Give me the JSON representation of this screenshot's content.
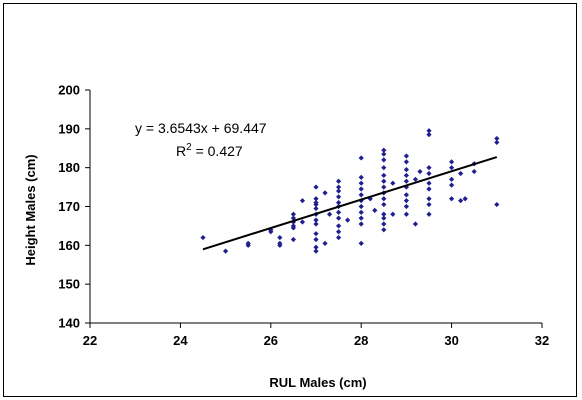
{
  "chart_data": {
    "type": "scatter",
    "title": "",
    "xlabel": "RUL Males (cm)",
    "ylabel": "Height Males (cm)",
    "xlim": [
      22,
      32
    ],
    "ylim": [
      140,
      200
    ],
    "xticks": [
      22,
      24,
      26,
      28,
      30,
      32
    ],
    "yticks": [
      140,
      150,
      160,
      170,
      180,
      190,
      200
    ],
    "grid": false,
    "legend": "none",
    "marker_color": "#1f1f8f",
    "trendline": {
      "equation": "y = 3.6543x + 69.447",
      "r2_label": "R",
      "r2_sup": "2",
      "r2_value": " = 0.427",
      "slope": 3.6543,
      "intercept": 69.447,
      "x_range": [
        24.5,
        31.0
      ]
    },
    "points": [
      [
        24.5,
        162
      ],
      [
        25.0,
        158.5
      ],
      [
        25.5,
        160.5
      ],
      [
        25.5,
        160
      ],
      [
        26.0,
        163.5
      ],
      [
        26.0,
        164
      ],
      [
        26.2,
        162
      ],
      [
        26.2,
        160.5
      ],
      [
        26.2,
        160
      ],
      [
        26.5,
        168
      ],
      [
        26.5,
        167
      ],
      [
        26.5,
        166
      ],
      [
        26.5,
        165
      ],
      [
        26.5,
        164.5
      ],
      [
        26.5,
        161.5
      ],
      [
        26.7,
        171.5
      ],
      [
        26.7,
        166
      ],
      [
        27.0,
        175
      ],
      [
        27.0,
        172
      ],
      [
        27.0,
        171
      ],
      [
        27.0,
        170.5
      ],
      [
        27.0,
        169.5
      ],
      [
        27.0,
        168
      ],
      [
        27.0,
        166.5
      ],
      [
        27.0,
        165.5
      ],
      [
        27.0,
        163
      ],
      [
        27.0,
        161.5
      ],
      [
        27.0,
        159.5
      ],
      [
        27.0,
        158.5
      ],
      [
        27.2,
        173.5
      ],
      [
        27.2,
        160.5
      ],
      [
        27.5,
        176.5
      ],
      [
        27.5,
        175
      ],
      [
        27.5,
        174
      ],
      [
        27.5,
        172.5
      ],
      [
        27.5,
        171
      ],
      [
        27.5,
        170
      ],
      [
        27.5,
        168.5
      ],
      [
        27.5,
        167
      ],
      [
        27.5,
        165
      ],
      [
        27.5,
        163.5
      ],
      [
        27.5,
        162
      ],
      [
        27.3,
        168
      ],
      [
        27.7,
        166.5
      ],
      [
        28.0,
        182.5
      ],
      [
        28.0,
        177.5
      ],
      [
        28.0,
        176
      ],
      [
        28.0,
        174.5
      ],
      [
        28.0,
        173
      ],
      [
        28.0,
        171.5
      ],
      [
        28.0,
        170
      ],
      [
        28.0,
        168.5
      ],
      [
        28.0,
        167
      ],
      [
        28.0,
        165.5
      ],
      [
        28.0,
        160.5
      ],
      [
        28.2,
        172
      ],
      [
        28.3,
        169
      ],
      [
        28.5,
        184.5
      ],
      [
        28.5,
        183.5
      ],
      [
        28.5,
        182
      ],
      [
        28.5,
        180
      ],
      [
        28.5,
        178
      ],
      [
        28.5,
        176.5
      ],
      [
        28.5,
        175
      ],
      [
        28.5,
        173.5
      ],
      [
        28.5,
        172
      ],
      [
        28.5,
        170.5
      ],
      [
        28.5,
        168
      ],
      [
        28.5,
        167
      ],
      [
        28.5,
        165.5
      ],
      [
        28.5,
        164
      ],
      [
        28.7,
        176
      ],
      [
        28.7,
        168
      ],
      [
        29.0,
        183
      ],
      [
        29.0,
        181.5
      ],
      [
        29.0,
        179.5
      ],
      [
        29.0,
        178
      ],
      [
        29.0,
        176.5
      ],
      [
        29.0,
        175
      ],
      [
        29.0,
        173
      ],
      [
        29.0,
        171.5
      ],
      [
        29.0,
        170
      ],
      [
        29.0,
        168
      ],
      [
        29.2,
        177
      ],
      [
        29.2,
        165.5
      ],
      [
        29.5,
        189.5
      ],
      [
        29.5,
        188.5
      ],
      [
        29.5,
        180
      ],
      [
        29.5,
        178.5
      ],
      [
        29.5,
        176
      ],
      [
        29.5,
        174.5
      ],
      [
        29.5,
        172
      ],
      [
        29.5,
        170.5
      ],
      [
        29.5,
        168
      ],
      [
        29.3,
        179
      ],
      [
        30.0,
        181.5
      ],
      [
        30.0,
        180
      ],
      [
        30.0,
        177
      ],
      [
        30.0,
        175.5
      ],
      [
        30.0,
        172
      ],
      [
        30.2,
        178.5
      ],
      [
        30.2,
        171.5
      ],
      [
        30.3,
        172
      ],
      [
        30.5,
        181
      ],
      [
        30.5,
        179
      ],
      [
        31.0,
        187.5
      ],
      [
        31.0,
        186.5
      ],
      [
        31.0,
        170.5
      ]
    ]
  }
}
